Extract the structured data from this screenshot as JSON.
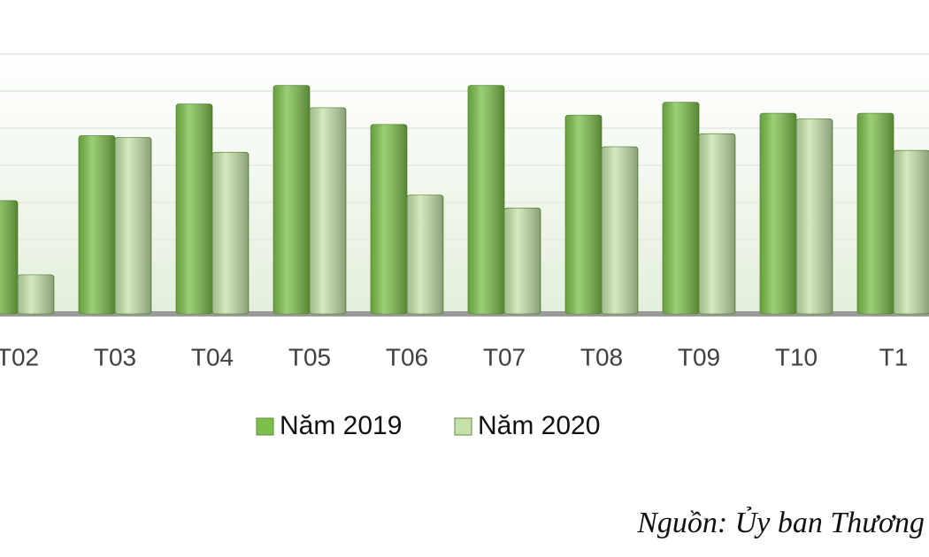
{
  "chart_data": {
    "type": "bar",
    "categories": [
      "T02",
      "T03",
      "T04",
      "T05",
      "T06",
      "T07",
      "T08",
      "T09",
      "T10",
      "T1"
    ],
    "series": [
      {
        "name": "Năm 2019",
        "color": "#7cbf4a",
        "values": [
          3.05,
          4.8,
          5.65,
          6.15,
          5.1,
          6.15,
          5.35,
          5.7,
          5.4,
          5.4
        ]
      },
      {
        "name": "Năm 2020",
        "color": "#c4e2aa",
        "values": [
          1.05,
          4.75,
          4.35,
          5.55,
          3.2,
          2.85,
          4.5,
          4.85,
          5.25,
          4.4
        ]
      }
    ],
    "ylim": [
      0,
      7
    ],
    "yticks": [
      0,
      1,
      2,
      3,
      4,
      5,
      6,
      7
    ],
    "grid": true,
    "tick_labels": false,
    "legend": "bottom",
    "source": "Nguồn: Ủy ban Thương"
  }
}
